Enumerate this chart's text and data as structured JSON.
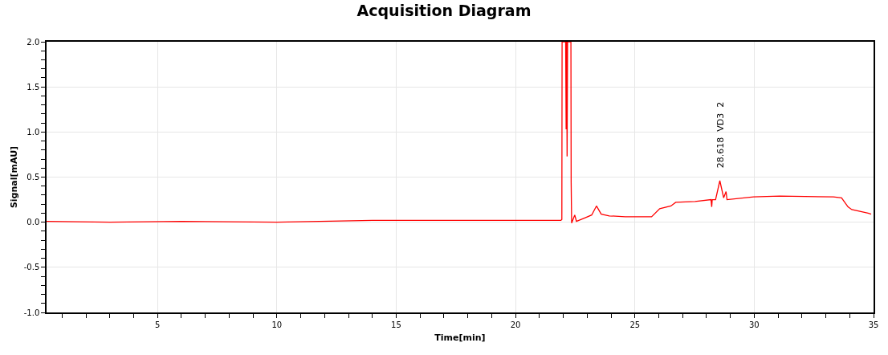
{
  "chart_data": {
    "type": "line",
    "title": "Acquisition Diagram",
    "xlabel": "Time[min]",
    "ylabel": "Signal[mAU]",
    "series": [
      {
        "color": "#ff0000",
        "x": [
          0.35,
          3,
          6,
          10,
          14,
          18,
          21.9,
          21.94,
          21.95,
          22.1,
          22.12,
          22.14,
          22.16,
          22.18,
          22.32,
          22.33,
          22.35,
          22.48,
          22.55,
          22.92,
          23.19,
          23.39,
          23.59,
          23.93,
          24.6,
          25.7,
          26.04,
          26.51,
          26.71,
          27.52,
          28.19,
          28.22,
          28.24,
          28.38,
          28.56,
          28.72,
          28.82,
          28.86,
          29.97,
          31.07,
          33.32,
          33.66,
          33.93,
          34.09,
          34.77,
          34.9
        ],
        "values": [
          0.01,
          0.0,
          0.01,
          0.0,
          0.02,
          0.02,
          0.02,
          0.03,
          2.0,
          2.0,
          1.03,
          2.0,
          0.73,
          2.0,
          2.0,
          0.44,
          -0.01,
          0.08,
          0.01,
          0.05,
          0.08,
          0.18,
          0.09,
          0.07,
          0.06,
          0.06,
          0.15,
          0.18,
          0.22,
          0.23,
          0.25,
          0.17,
          0.25,
          0.25,
          0.46,
          0.27,
          0.34,
          0.25,
          0.28,
          0.29,
          0.28,
          0.27,
          0.17,
          0.14,
          0.1,
          0.09
        ]
      }
    ],
    "xlim": [
      0.35,
      35
    ],
    "ylim": [
      -1.0,
      2.0
    ],
    "xticks": [
      5,
      10,
      15,
      20,
      25,
      30,
      35,
      {
        "value": 1,
        "label": null
      },
      {
        "value": 2,
        "label": null
      },
      {
        "value": 3,
        "label": null
      },
      {
        "value": 4,
        "label": null
      },
      {
        "value": 6,
        "label": null
      },
      {
        "value": 7,
        "label": null
      },
      {
        "value": 8,
        "label": null
      },
      {
        "value": 9,
        "label": null
      },
      {
        "value": 11,
        "label": null
      },
      {
        "value": 12,
        "label": null
      },
      {
        "value": 13,
        "label": null
      },
      {
        "value": 14,
        "label": null
      },
      {
        "value": 16,
        "label": null
      },
      {
        "value": 17,
        "label": null
      },
      {
        "value": 18,
        "label": null
      },
      {
        "value": 19,
        "label": null
      },
      {
        "value": 21,
        "label": null
      },
      {
        "value": 22,
        "label": null
      },
      {
        "value": 23,
        "label": null
      },
      {
        "value": 24,
        "label": null
      },
      {
        "value": 26,
        "label": null
      },
      {
        "value": 27,
        "label": null
      },
      {
        "value": 28,
        "label": null
      },
      {
        "value": 29,
        "label": null
      },
      {
        "value": 31,
        "label": null
      },
      {
        "value": 32,
        "label": null
      },
      {
        "value": 33,
        "label": null
      },
      {
        "value": 34,
        "label": null
      }
    ],
    "yticks": [
      {
        "value": -1.0,
        "label": "-1.0"
      },
      {
        "value": -0.5,
        "label": "-0.5"
      },
      {
        "value": 0.0,
        "label": "0.0"
      },
      {
        "value": 0.5,
        "label": "0.5"
      },
      {
        "value": 1.0,
        "label": "1.0"
      },
      {
        "value": 1.5,
        "label": "1.5"
      },
      {
        "value": 2.0,
        "label": "2.0"
      },
      {
        "value": -0.9,
        "label": null
      },
      {
        "value": -0.8,
        "label": null
      },
      {
        "value": -0.7,
        "label": null
      },
      {
        "value": -0.6,
        "label": null
      },
      {
        "value": -0.4,
        "label": null
      },
      {
        "value": -0.3,
        "label": null
      },
      {
        "value": -0.2,
        "label": null
      },
      {
        "value": -0.1,
        "label": null
      },
      {
        "value": 0.1,
        "label": null
      },
      {
        "value": 0.2,
        "label": null
      },
      {
        "value": 0.3,
        "label": null
      },
      {
        "value": 0.4,
        "label": null
      },
      {
        "value": 0.6,
        "label": null
      },
      {
        "value": 0.7,
        "label": null
      },
      {
        "value": 0.8,
        "label": null
      },
      {
        "value": 0.9,
        "label": null
      },
      {
        "value": 1.1,
        "label": null
      },
      {
        "value": 1.2,
        "label": null
      },
      {
        "value": 1.3,
        "label": null
      },
      {
        "value": 1.4,
        "label": null
      },
      {
        "value": 1.6,
        "label": null
      },
      {
        "value": 1.7,
        "label": null
      },
      {
        "value": 1.8,
        "label": null
      },
      {
        "value": 1.9,
        "label": null
      }
    ],
    "annotations": [
      {
        "text": "28.618  VD3  2",
        "x": 28.62,
        "y": 0.46
      }
    ],
    "grid": true,
    "marker": "none",
    "line_style": "solid"
  }
}
